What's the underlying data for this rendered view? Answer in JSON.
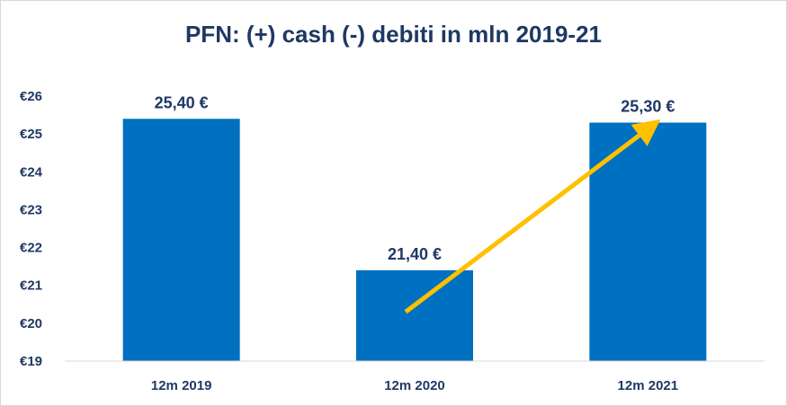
{
  "chart_data": {
    "type": "bar",
    "title": "PFN: (+) cash (-) debiti in mln 2019-21",
    "categories": [
      "12m 2019",
      "12m 2020",
      "12m 2021"
    ],
    "values": [
      25.4,
      21.4,
      25.3
    ],
    "data_labels": [
      "25,40 €",
      "21,40 €",
      "25,30 €"
    ],
    "ylim": [
      19,
      26
    ],
    "y_ticks": [
      "€19",
      "€20",
      "€21",
      "€22",
      "€23",
      "€24",
      "€25",
      "€26"
    ],
    "grid": false,
    "legend": "none",
    "bar_color": "#0070c0",
    "annotation": {
      "type": "arrow",
      "color": "#ffc000",
      "from": {
        "category": "12m 2020",
        "value": 20.3
      },
      "to": {
        "category": "12m 2021",
        "value": 25.0
      }
    }
  }
}
